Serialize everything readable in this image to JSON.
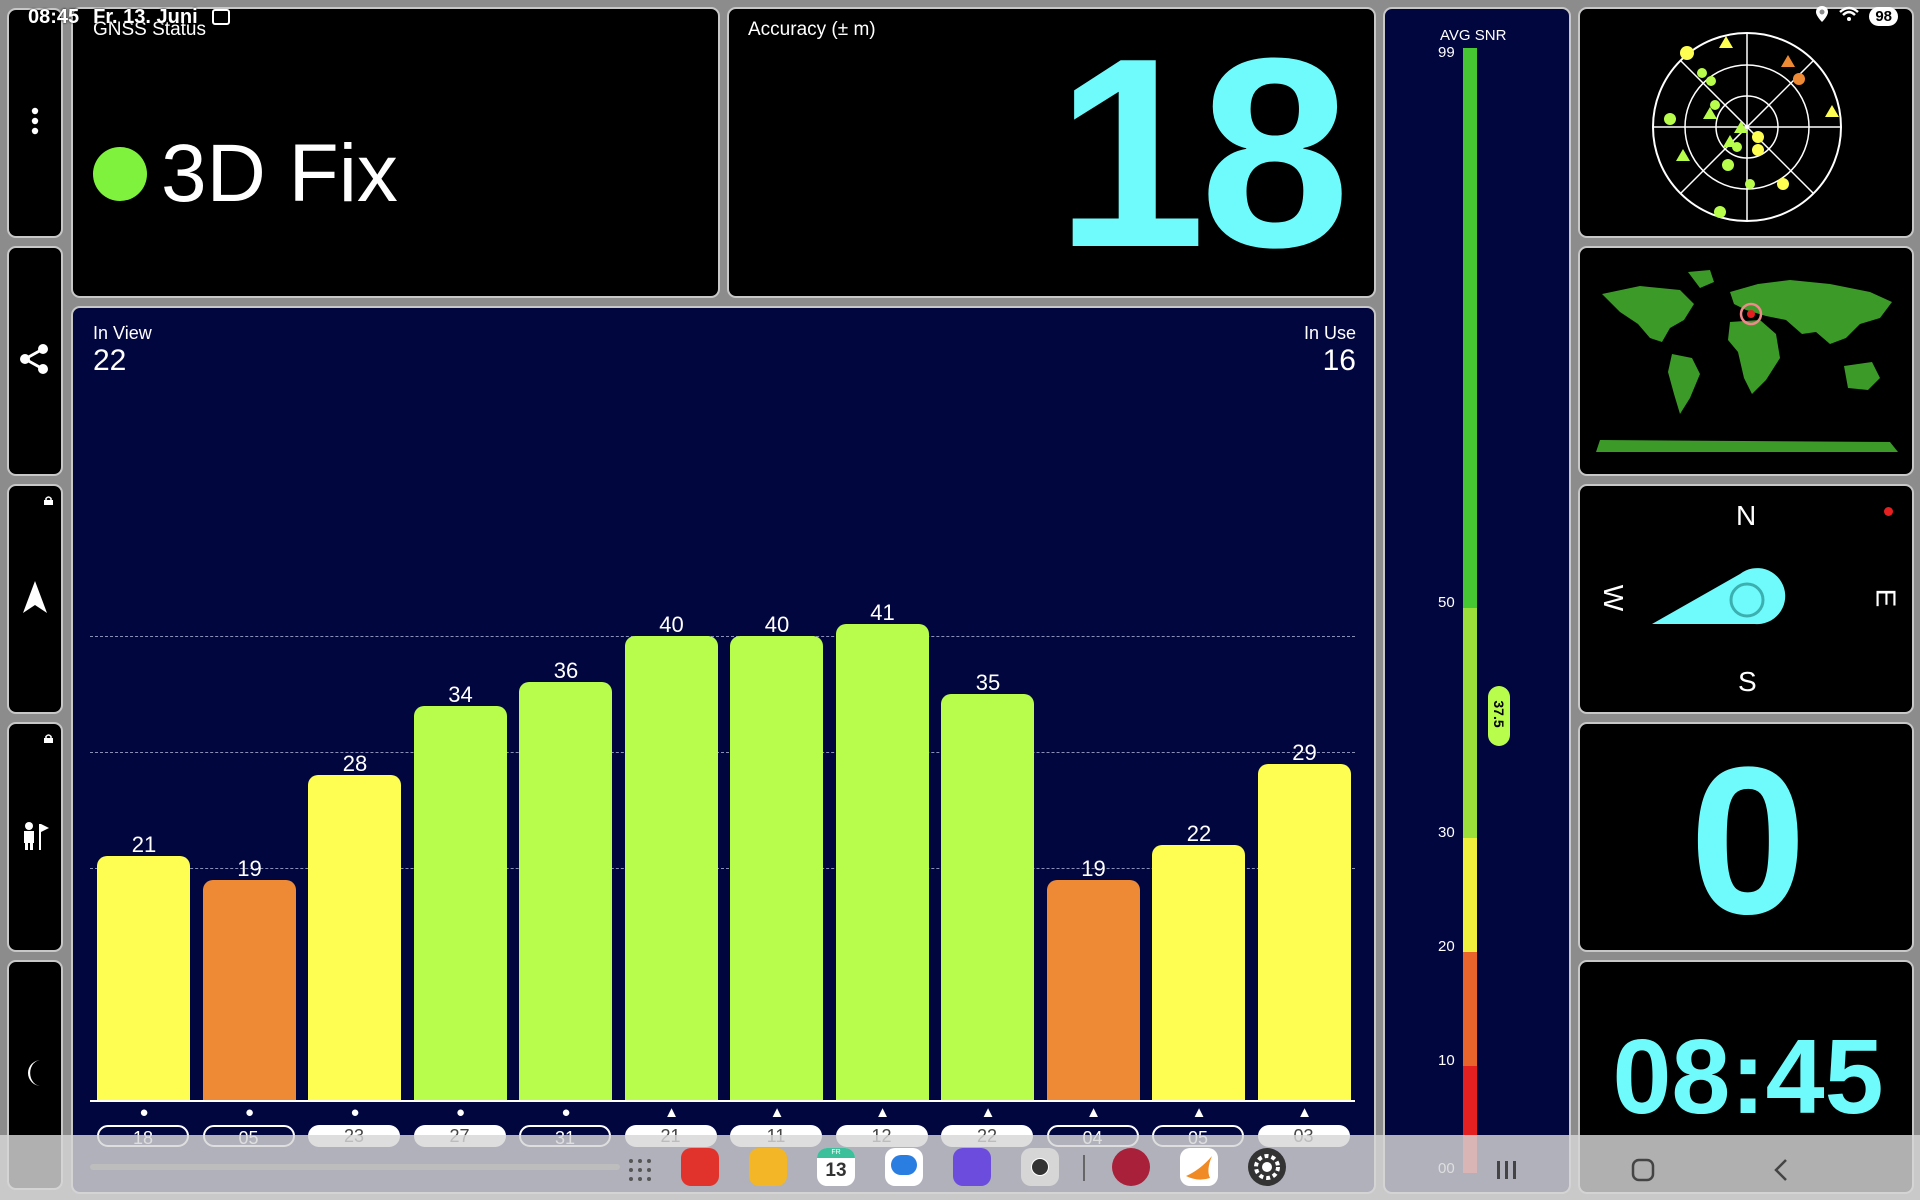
{
  "status_bar": {
    "time": "08:45",
    "date": "Fr. 13. Juni",
    "battery": "98"
  },
  "gnss": {
    "title": "GNSS Status",
    "fix_text": "3D Fix",
    "fix_color": "#7ef23c"
  },
  "accuracy": {
    "title": "Accuracy (± m)",
    "value": "18"
  },
  "satellites": {
    "in_view_label": "In View",
    "in_view": "22",
    "in_use_label": "In Use",
    "in_use": "16"
  },
  "chart_data": {
    "type": "bar",
    "categories": [
      "18",
      "05",
      "23",
      "27",
      "31",
      "21",
      "11",
      "12",
      "22",
      "04",
      "05",
      "03"
    ],
    "values": [
      21,
      19,
      28,
      34,
      36,
      40,
      40,
      41,
      35,
      19,
      22,
      29
    ],
    "used": [
      false,
      false,
      true,
      true,
      false,
      true,
      true,
      true,
      true,
      false,
      false,
      true
    ],
    "constellation_marker": [
      "circle",
      "circle",
      "circle",
      "circle",
      "circle",
      "triangle",
      "triangle",
      "triangle",
      "triangle",
      "triangle",
      "triangle",
      "triangle"
    ],
    "colors": [
      "#fdfd52",
      "#ee8a35",
      "#fdfd52",
      "#b8fd4b",
      "#b8fd4b",
      "#b8fd4b",
      "#b8fd4b",
      "#b8fd4b",
      "#b8fd4b",
      "#ee8a35",
      "#fdfd52",
      "#fdfd52"
    ],
    "ylim": [
      0,
      50
    ],
    "gridlines": [
      20,
      30,
      40
    ]
  },
  "snr": {
    "title": "AVG SNR",
    "ticks": [
      "99",
      "50",
      "30",
      "20",
      "10",
      "00"
    ],
    "avg": "37.5",
    "colors": {
      "high": "#46c832",
      "mid_high": "#9adf3a",
      "mid": "#eff03c",
      "low": "#e8642a",
      "very_low": "#e42020"
    }
  },
  "compass": {
    "n": "N",
    "s": "S",
    "e": "E",
    "w": "W"
  },
  "speed": {
    "value": "0"
  },
  "clock": {
    "value": "08:45"
  },
  "icons": {
    "menu": "more-vert-icon",
    "share": "share-icon",
    "navigate": "navigation-arrow-icon",
    "person": "person-flag-icon",
    "night": "moon-icon",
    "lock": "lock-icon",
    "location": "location-pin-icon",
    "wifi": "wifi-icon",
    "screenshot": "screenshot-icon"
  },
  "dock": {
    "apps": [
      "notes-app",
      "files-app",
      "calendar-app",
      "messages-app",
      "browser-app",
      "camera-app",
      "game-app",
      "swift-app",
      "settings-app"
    ],
    "calendar_day": "13",
    "calendar_weekday": "FR"
  }
}
